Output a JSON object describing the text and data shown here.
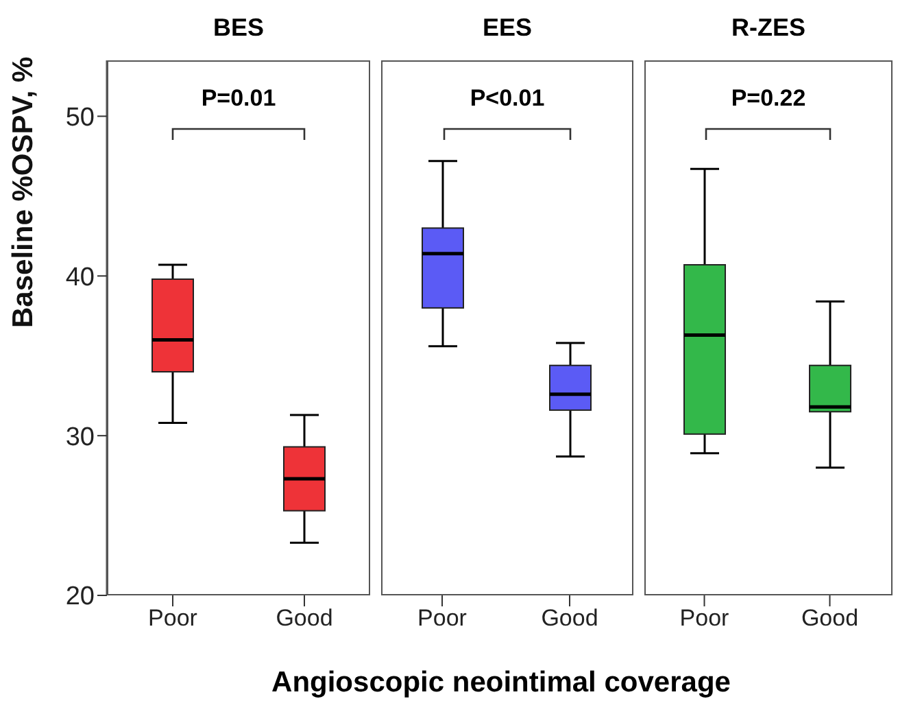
{
  "chart_data": [
    {
      "type": "box",
      "title": "BES",
      "ylabel": "Baseline %OSPV, %",
      "categories": [
        "Poor",
        "Good"
      ],
      "color": "#ee3338",
      "ylim": [
        20,
        53.5
      ],
      "yticks": [
        20,
        30,
        40,
        50
      ],
      "annotations": [
        "P=0.01"
      ],
      "boxes": [
        {
          "low": 30.8,
          "q1": 34.0,
          "median": 36.0,
          "q3": 39.8,
          "high": 40.7
        },
        {
          "low": 23.3,
          "q1": 25.3,
          "median": 27.3,
          "q3": 29.3,
          "high": 31.3
        }
      ]
    },
    {
      "type": "box",
      "title": "EES",
      "xlabel": "Angioscopic neointimal coverage",
      "categories": [
        "Poor",
        "Good"
      ],
      "color": "#5b5bf5",
      "ylim": [
        20,
        53.5
      ],
      "tick_labels": "x",
      "annotations": [
        "P<0.01"
      ],
      "boxes": [
        {
          "low": 35.6,
          "q1": 38.0,
          "median": 41.4,
          "q3": 43.0,
          "high": 47.2
        },
        {
          "low": 28.7,
          "q1": 31.6,
          "median": 32.6,
          "q3": 34.4,
          "high": 35.8
        }
      ]
    },
    {
      "type": "box",
      "title": "R-ZES",
      "categories": [
        "Poor",
        "Good"
      ],
      "color": "#33b84a",
      "ylim": [
        20,
        53.5
      ],
      "tick_labels": "x",
      "annotations": [
        "P=0.22"
      ],
      "boxes": [
        {
          "low": 28.9,
          "q1": 30.1,
          "median": 36.3,
          "q3": 40.7,
          "high": 46.7
        },
        {
          "low": 28.0,
          "q1": 31.5,
          "median": 31.8,
          "q3": 34.4,
          "high": 38.4
        }
      ]
    }
  ]
}
